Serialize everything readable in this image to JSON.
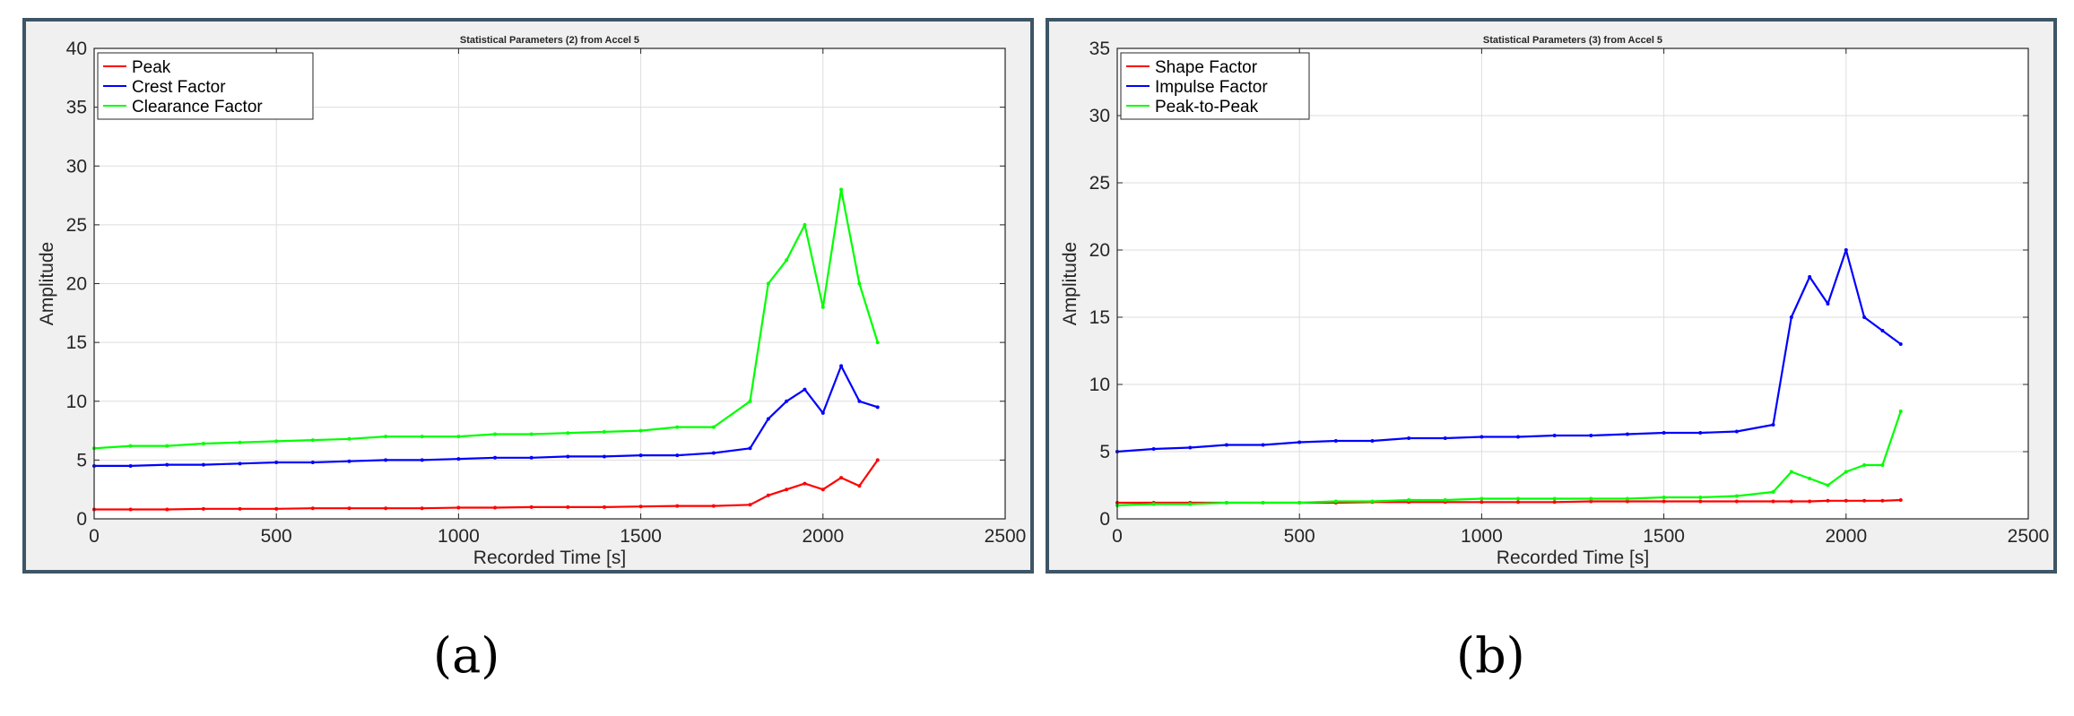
{
  "captions": [
    "(a)",
    "(b)"
  ],
  "chart_data": [
    {
      "type": "line",
      "title": "Statistical Parameters (2) from Accel 5",
      "xlabel": "Recorded Time [s]",
      "ylabel": "Amplitude",
      "xlim": [
        0,
        2500
      ],
      "ylim": [
        0,
        40
      ],
      "xticks": [
        0,
        500,
        1000,
        1500,
        2000,
        2500
      ],
      "yticks": [
        0,
        5,
        10,
        15,
        20,
        25,
        30,
        35,
        40
      ],
      "grid": true,
      "legend_position": "top-left",
      "x": [
        0,
        100,
        200,
        300,
        400,
        500,
        600,
        700,
        800,
        900,
        1000,
        1100,
        1200,
        1300,
        1400,
        1500,
        1600,
        1700,
        1800,
        1850,
        1900,
        1950,
        2000,
        2050,
        2100,
        2150
      ],
      "series": [
        {
          "name": "Peak",
          "color": "#ff0000",
          "values": [
            0.8,
            0.8,
            0.8,
            0.85,
            0.85,
            0.85,
            0.9,
            0.9,
            0.9,
            0.9,
            0.95,
            0.95,
            1.0,
            1.0,
            1.0,
            1.05,
            1.1,
            1.1,
            1.2,
            2.0,
            2.5,
            3.0,
            2.5,
            3.5,
            2.8,
            5.0
          ]
        },
        {
          "name": "Crest Factor",
          "color": "#0000ff",
          "values": [
            4.5,
            4.5,
            4.6,
            4.6,
            4.7,
            4.8,
            4.8,
            4.9,
            5.0,
            5.0,
            5.1,
            5.2,
            5.2,
            5.3,
            5.3,
            5.4,
            5.4,
            5.6,
            6.0,
            8.5,
            10.0,
            11.0,
            9.0,
            13.0,
            10.0,
            9.5
          ]
        },
        {
          "name": "Clearance Factor",
          "color": "#00ff00",
          "values": [
            6.0,
            6.2,
            6.2,
            6.4,
            6.5,
            6.6,
            6.7,
            6.8,
            7.0,
            7.0,
            7.0,
            7.2,
            7.2,
            7.3,
            7.4,
            7.5,
            7.8,
            7.8,
            10.0,
            20.0,
            22.0,
            25.0,
            18.0,
            28.0,
            20.0,
            15.0
          ]
        }
      ]
    },
    {
      "type": "line",
      "title": "Statistical Parameters (3) from Accel 5",
      "xlabel": "Recorded Time [s]",
      "ylabel": "Amplitude",
      "xlim": [
        0,
        2500
      ],
      "ylim": [
        0,
        35
      ],
      "xticks": [
        0,
        500,
        1000,
        1500,
        2000,
        2500
      ],
      "yticks": [
        0,
        5,
        10,
        15,
        20,
        25,
        30,
        35
      ],
      "grid": true,
      "legend_position": "top-left",
      "x": [
        0,
        100,
        200,
        300,
        400,
        500,
        600,
        700,
        800,
        900,
        1000,
        1100,
        1200,
        1300,
        1400,
        1500,
        1600,
        1700,
        1800,
        1850,
        1900,
        1950,
        2000,
        2050,
        2100,
        2150
      ],
      "series": [
        {
          "name": "Shape Factor",
          "color": "#ff0000",
          "values": [
            1.2,
            1.2,
            1.2,
            1.2,
            1.2,
            1.2,
            1.2,
            1.25,
            1.25,
            1.25,
            1.25,
            1.25,
            1.25,
            1.3,
            1.3,
            1.3,
            1.3,
            1.3,
            1.3,
            1.3,
            1.3,
            1.35,
            1.35,
            1.35,
            1.35,
            1.4
          ]
        },
        {
          "name": "Impulse Factor",
          "color": "#0000ff",
          "values": [
            5.0,
            5.2,
            5.3,
            5.5,
            5.5,
            5.7,
            5.8,
            5.8,
            6.0,
            6.0,
            6.1,
            6.1,
            6.2,
            6.2,
            6.3,
            6.4,
            6.4,
            6.5,
            7.0,
            15.0,
            18.0,
            16.0,
            20.0,
            15.0,
            14.0,
            13.0
          ]
        },
        {
          "name": "Peak-to-Peak",
          "color": "#00ff00",
          "values": [
            1.0,
            1.1,
            1.1,
            1.2,
            1.2,
            1.2,
            1.3,
            1.3,
            1.4,
            1.4,
            1.5,
            1.5,
            1.5,
            1.5,
            1.5,
            1.6,
            1.6,
            1.7,
            2.0,
            3.5,
            3.0,
            2.5,
            3.5,
            4.0,
            4.0,
            8.0
          ]
        }
      ]
    }
  ]
}
